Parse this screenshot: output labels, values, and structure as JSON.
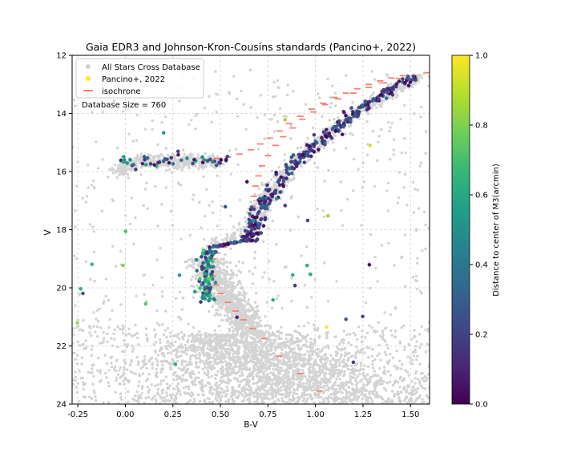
{
  "chart_data": {
    "type": "scatter",
    "title": "Gaia EDR3 and Johnson-Kron-Cousins standards (Pancino+, 2022)",
    "xlabel": "B-V",
    "ylabel": "V",
    "xlim": [
      -0.28,
      1.6
    ],
    "ylim": [
      24,
      12
    ],
    "y_inverted": true,
    "grid": true,
    "x_ticks": [
      "-0.25",
      "0.00",
      "0.25",
      "0.50",
      "0.75",
      "1.00",
      "1.25",
      "1.50"
    ],
    "x_tick_values": [
      -0.25,
      0,
      0.25,
      0.5,
      0.75,
      1.0,
      1.25,
      1.5
    ],
    "y_ticks": [
      "12",
      "14",
      "16",
      "18",
      "20",
      "22",
      "24"
    ],
    "y_tick_values": [
      12,
      14,
      16,
      18,
      20,
      22,
      24
    ],
    "legend_position": "top-left",
    "legend": [
      {
        "label": "All Stars Cross Database",
        "color": "#d3d3d3",
        "marker": "circle"
      },
      {
        "label": "Pancino+, 2022",
        "color": "#fde725",
        "marker": "circle"
      },
      {
        "label": "isochrone",
        "color": "#fa8072",
        "marker": "dash"
      }
    ],
    "annotation": "Database Size = 760",
    "colorbar": {
      "label": "Distance to center of M3(arcmin)",
      "range": [
        0.0,
        1.0
      ],
      "ticks": [
        "0.0",
        "0.2",
        "0.4",
        "0.6",
        "0.8",
        "1.0"
      ],
      "tick_values": [
        0,
        0.2,
        0.4,
        0.6,
        0.8,
        1.0
      ],
      "colormap": "viridis",
      "colormap_stops": [
        "#440154",
        "#482878",
        "#3e4989",
        "#31688e",
        "#26828e",
        "#1f9e89",
        "#35b779",
        "#6ece58",
        "#b5de2b",
        "#fde725"
      ]
    },
    "series": [
      {
        "name": "isochrone",
        "color": "#fa8072",
        "points": [
          [
            1.02,
            23.55
          ],
          [
            0.92,
            22.95
          ],
          [
            0.81,
            22.35
          ],
          [
            0.73,
            21.75
          ],
          [
            0.67,
            21.4
          ],
          [
            0.62,
            21.1
          ],
          [
            0.58,
            20.8
          ],
          [
            0.54,
            20.5
          ],
          [
            0.5,
            20.2
          ],
          [
            0.475,
            19.9
          ],
          [
            0.46,
            19.6
          ],
          [
            0.455,
            19.3
          ],
          [
            0.46,
            19.0
          ],
          [
            0.48,
            18.8
          ],
          [
            0.52,
            18.6
          ],
          [
            0.58,
            18.45
          ],
          [
            0.63,
            18.2
          ],
          [
            0.655,
            17.9
          ],
          [
            0.665,
            17.55
          ],
          [
            0.67,
            17.2
          ],
          [
            0.675,
            16.85
          ],
          [
            0.685,
            16.5
          ],
          [
            0.7,
            16.15
          ],
          [
            0.72,
            15.8
          ],
          [
            0.75,
            15.45
          ],
          [
            0.79,
            15.1
          ],
          [
            0.83,
            14.8
          ],
          [
            0.88,
            14.5
          ],
          [
            0.93,
            14.2
          ],
          [
            0.99,
            13.95
          ],
          [
            1.05,
            13.7
          ],
          [
            1.12,
            13.5
          ],
          [
            1.2,
            13.3
          ],
          [
            1.28,
            13.1
          ],
          [
            1.36,
            12.95
          ],
          [
            1.44,
            12.8
          ],
          [
            1.52,
            12.7
          ],
          [
            1.59,
            12.6
          ],
          [
            0.42,
            15.6
          ],
          [
            0.48,
            15.55
          ],
          [
            0.54,
            15.5
          ],
          [
            0.6,
            15.4
          ],
          [
            0.66,
            15.25
          ],
          [
            0.71,
            15.05
          ],
          [
            0.76,
            14.85
          ],
          [
            0.81,
            14.6
          ],
          [
            0.86,
            14.35
          ],
          [
            0.92,
            14.1
          ],
          [
            0.98,
            13.85
          ],
          [
            1.04,
            13.65
          ],
          [
            1.1,
            13.45
          ],
          [
            1.16,
            13.3
          ],
          [
            1.22,
            13.15
          ],
          [
            1.28,
            13.0
          ],
          [
            1.34,
            12.88
          ],
          [
            1.4,
            12.78
          ],
          [
            1.46,
            12.7
          ]
        ]
      }
    ]
  }
}
